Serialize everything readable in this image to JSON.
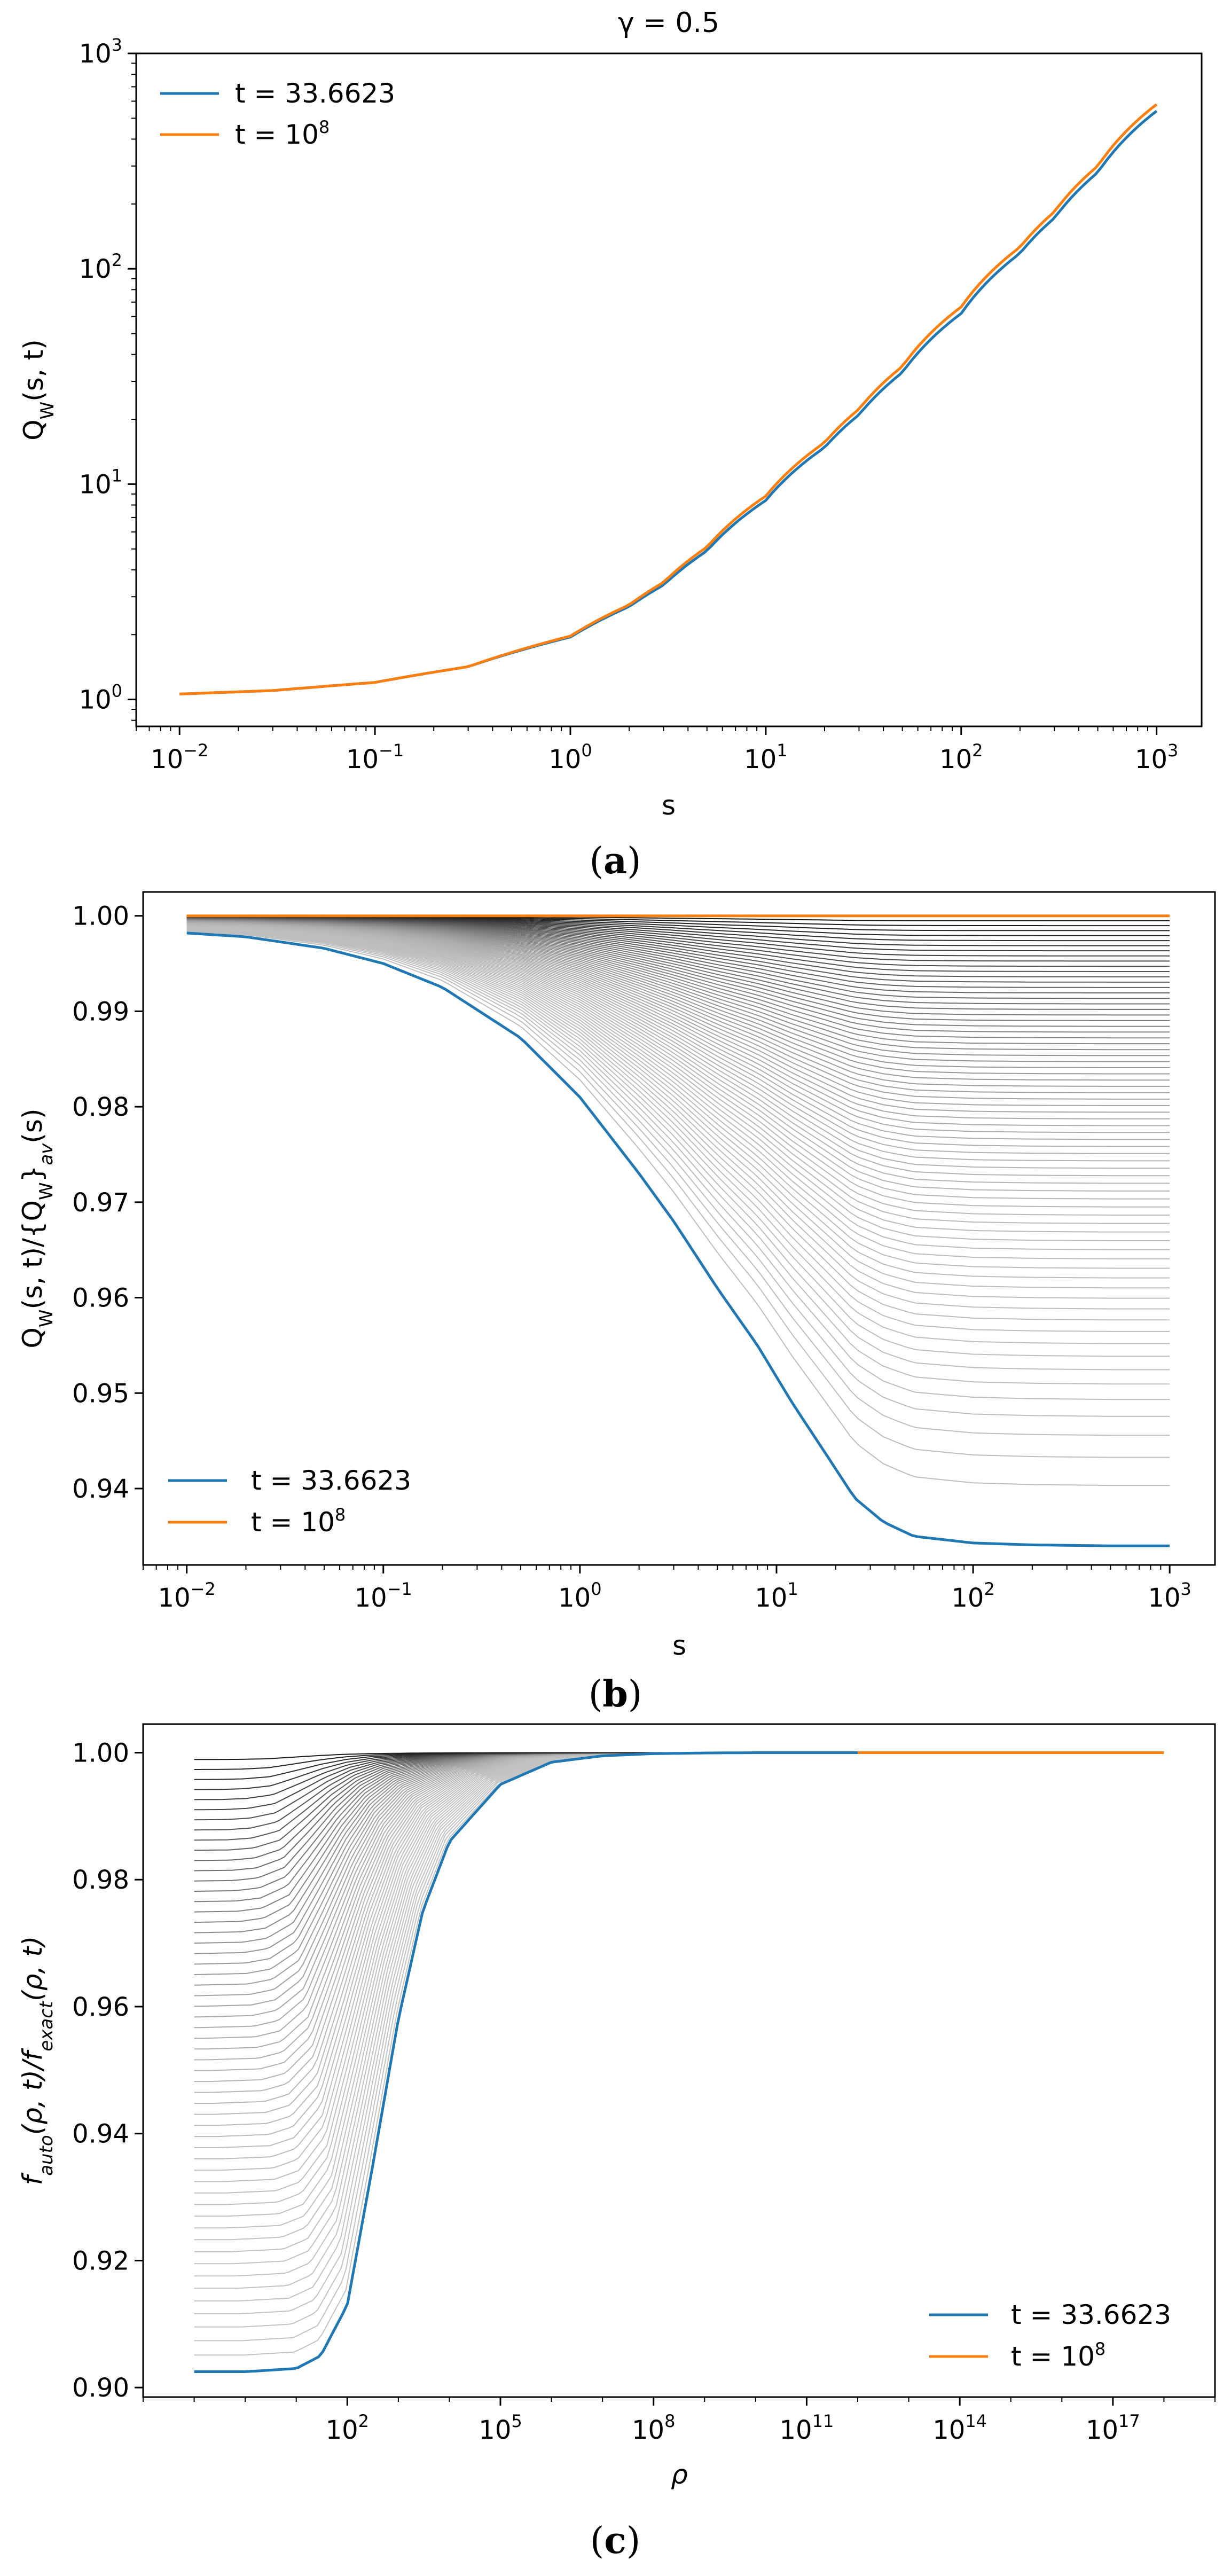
{
  "colors": {
    "series_blue": "#1f77b4",
    "series_orange": "#ff7f0e",
    "family_gray": "#b0b0b0"
  },
  "chart_data": [
    {
      "id": "a",
      "type": "line",
      "title": "γ = 0.5",
      "xlabel": "s",
      "ylabel": "Q_W(s, t)",
      "ylabel_parts": {
        "main": "Q",
        "sub": "W",
        "rest": "(s, t)"
      },
      "xscale": "log",
      "yscale": "log",
      "xlim": [
        0.006,
        1700
      ],
      "ylim": [
        0.75,
        1000
      ],
      "xticks": [
        {
          "value": 0.01,
          "base": "10",
          "exp": "−2"
        },
        {
          "value": 0.1,
          "base": "10",
          "exp": "−1"
        },
        {
          "value": 1,
          "base": "10",
          "exp": "0"
        },
        {
          "value": 10,
          "base": "10",
          "exp": "1"
        },
        {
          "value": 100,
          "base": "10",
          "exp": "2"
        },
        {
          "value": 1000,
          "base": "10",
          "exp": "3"
        }
      ],
      "yticks": [
        {
          "value": 1,
          "base": "10",
          "exp": "0"
        },
        {
          "value": 10,
          "base": "10",
          "exp": "1"
        },
        {
          "value": 100,
          "base": "10",
          "exp": "2"
        },
        {
          "value": 1000,
          "base": "10",
          "exp": "3"
        }
      ],
      "legend_position": "top-left",
      "legend": [
        {
          "label": "t = 33.6623",
          "base": "t = 33.6623",
          "exp": ""
        },
        {
          "label": "t = 10^8",
          "base": "t = 10",
          "exp": "8"
        }
      ],
      "series": [
        {
          "name": "t = 33.6623",
          "color_key": "series_blue",
          "x": [
            0.01,
            0.03,
            0.1,
            0.3,
            1,
            2,
            3,
            5,
            10,
            20,
            30,
            50,
            100,
            200,
            300,
            500,
            1000
          ],
          "y": [
            1.06,
            1.1,
            1.2,
            1.42,
            1.95,
            2.7,
            3.4,
            4.9,
            8.4,
            14.8,
            21.0,
            33.0,
            62.0,
            118.0,
            172.0,
            280.0,
            540.0
          ]
        },
        {
          "name": "t = 10^8",
          "color_key": "series_orange",
          "x": [
            0.01,
            0.03,
            0.1,
            0.3,
            1,
            2,
            3,
            5,
            10,
            20,
            30,
            50,
            100,
            200,
            300,
            500,
            1000
          ],
          "y": [
            1.06,
            1.1,
            1.2,
            1.42,
            1.97,
            2.75,
            3.5,
            5.1,
            8.8,
            15.6,
            22.3,
            35.2,
            66.5,
            126.0,
            184.0,
            300.0,
            580.0
          ]
        }
      ]
    },
    {
      "id": "b",
      "type": "line",
      "title": "",
      "xlabel": "s",
      "ylabel": "Q_W(s, t)/{Q_W}_av(s)",
      "ylabel_parts": {
        "a": "Q",
        "a_sub": "W",
        "b": "(s, t)/{Q",
        "b_sub": "W",
        "c": "}",
        "c_sub": "av",
        "d": "(s)"
      },
      "xscale": "log",
      "yscale": "linear",
      "xlim": [
        0.006,
        1700
      ],
      "ylim": [
        0.932,
        1.0025
      ],
      "xticks": [
        {
          "value": 0.01,
          "base": "10",
          "exp": "−2"
        },
        {
          "value": 0.1,
          "base": "10",
          "exp": "−1"
        },
        {
          "value": 1,
          "base": "10",
          "exp": "0"
        },
        {
          "value": 10,
          "base": "10",
          "exp": "1"
        },
        {
          "value": 100,
          "base": "10",
          "exp": "2"
        },
        {
          "value": 1000,
          "base": "10",
          "exp": "3"
        }
      ],
      "yticks": [
        {
          "value": 0.94,
          "label": "0.94"
        },
        {
          "value": 0.95,
          "label": "0.95"
        },
        {
          "value": 0.96,
          "label": "0.96"
        },
        {
          "value": 0.97,
          "label": "0.97"
        },
        {
          "value": 0.98,
          "label": "0.98"
        },
        {
          "value": 0.99,
          "label": "0.99"
        },
        {
          "value": 1.0,
          "label": "1.00"
        }
      ],
      "legend_position": "bottom-left",
      "legend": [
        {
          "label": "t = 33.6623",
          "base": "t = 33.6623",
          "exp": ""
        },
        {
          "label": "t = 10^8",
          "base": "t = 10",
          "exp": "8"
        }
      ],
      "series": [
        {
          "name": "t = 33.6623",
          "color_key": "series_blue",
          "x": [
            0.01,
            0.02,
            0.05,
            0.1,
            0.2,
            0.5,
            1,
            2,
            3,
            5,
            8,
            12,
            18,
            25,
            35,
            50,
            100,
            200,
            500,
            1000
          ],
          "y": [
            0.9982,
            0.9978,
            0.9966,
            0.995,
            0.9925,
            0.9872,
            0.981,
            0.973,
            0.968,
            0.961,
            0.955,
            0.949,
            0.9435,
            0.939,
            0.9365,
            0.935,
            0.9343,
            0.9341,
            0.934,
            0.934
          ]
        },
        {
          "name": "t = 10^8",
          "color_key": "series_orange",
          "x": [
            0.01,
            1000
          ],
          "y": [
            1.0,
            1.0
          ]
        }
      ]
    },
    {
      "id": "c",
      "type": "line",
      "title": "",
      "xlabel": "ρ",
      "ylabel": "f_auto(ρ, t)/f_exact(ρ, t)",
      "ylabel_parts": {
        "a": "f",
        "a_sub": "auto",
        "b": "(ρ, t)/f",
        "b_sub": "exact",
        "c": "(ρ, t)"
      },
      "xscale": "log",
      "yscale": "linear",
      "xlim": [
        0.01,
        1e+19
      ],
      "ylim": [
        0.8985,
        1.0045
      ],
      "xticks": [
        {
          "value": 100,
          "base": "10",
          "exp": "2"
        },
        {
          "value": 100000,
          "base": "10",
          "exp": "5"
        },
        {
          "value": 100000000,
          "base": "10",
          "exp": "8"
        },
        {
          "value": 100000000000,
          "base": "10",
          "exp": "11"
        },
        {
          "value": 100000000000000,
          "base": "10",
          "exp": "14"
        },
        {
          "value": 100000000000000000,
          "base": "10",
          "exp": "17"
        }
      ],
      "yticks": [
        {
          "value": 0.9,
          "label": "0.90"
        },
        {
          "value": 0.92,
          "label": "0.92"
        },
        {
          "value": 0.94,
          "label": "0.94"
        },
        {
          "value": 0.96,
          "label": "0.96"
        },
        {
          "value": 0.98,
          "label": "0.98"
        },
        {
          "value": 1.0,
          "label": "1.00"
        }
      ],
      "legend_position": "bottom-right",
      "legend": [
        {
          "label": "t = 33.6623",
          "base": "t = 33.6623",
          "exp": ""
        },
        {
          "label": "t = 10^8",
          "base": "t = 10",
          "exp": "8"
        }
      ],
      "series": [
        {
          "name": "t = 33.6623",
          "color_key": "series_blue",
          "x": [
            0.1,
            1,
            10,
            30,
            100,
            300,
            1000,
            3000,
            10000,
            100000,
            1000000,
            10000000,
            100000000,
            1000000000,
            10000000000,
            100000000000,
            1000000000000
          ],
          "y": [
            0.9025,
            0.9025,
            0.903,
            0.905,
            0.913,
            0.934,
            0.958,
            0.975,
            0.986,
            0.995,
            0.9985,
            0.9995,
            0.99985,
            0.99995,
            1.0,
            1.0,
            1.0
          ]
        },
        {
          "name": "t = 10^8",
          "color_key": "series_orange",
          "x": [
            1000000000000,
            1000000000000000000
          ],
          "y": [
            1.0,
            1.0
          ]
        }
      ]
    }
  ],
  "captions": [
    {
      "open": "(",
      "letter": "a",
      "close": ")"
    },
    {
      "open": "(",
      "letter": "b",
      "close": ")"
    },
    {
      "open": "(",
      "letter": "c",
      "close": ")"
    }
  ]
}
